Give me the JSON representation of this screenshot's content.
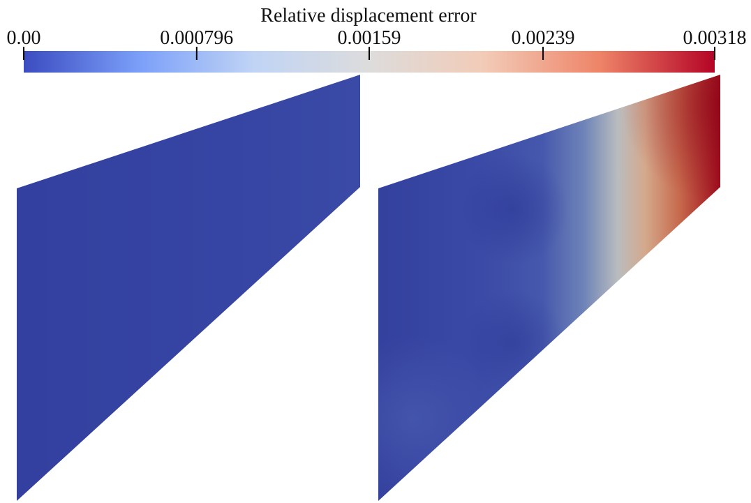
{
  "chart_data": {
    "type": "heatmap",
    "title": "Relative displacement error",
    "colormap": {
      "name": "coolwarm",
      "stops": [
        "#3b4cc0",
        "#7b9ff9",
        "#c0d4f5",
        "#dddcdc",
        "#f2cbb7",
        "#ee8468",
        "#b40426"
      ]
    },
    "range": [
      0.0,
      0.00318
    ],
    "colorbar_ticks": [
      {
        "value": 0.0,
        "label": "0.00"
      },
      {
        "value": 0.000796,
        "label": "0.000796"
      },
      {
        "value": 0.00159,
        "label": "0.00159"
      },
      {
        "value": 0.00239,
        "label": "0.00239"
      },
      {
        "value": 0.00318,
        "label": "0.00318"
      }
    ],
    "panels": [
      {
        "min_value": 0.0,
        "max_value": 0.0002,
        "field": "near-uniform low error"
      },
      {
        "min_value": 0.0,
        "max_value": 0.00318,
        "field": "error increases toward the right edge, maximum at upper-right corner"
      }
    ]
  }
}
